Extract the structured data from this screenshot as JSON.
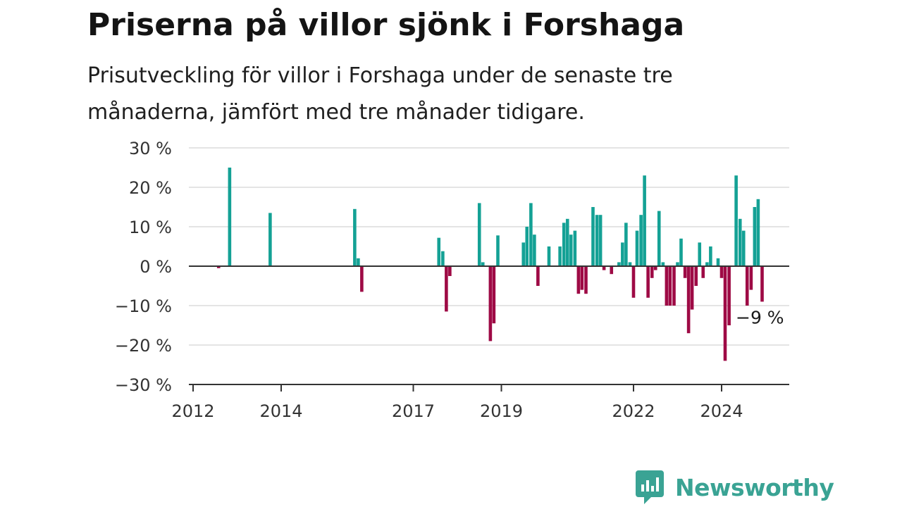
{
  "header": {
    "title": "Priserna på villor sjönk i Forshaga",
    "subtitle": "Prisutveckling för villor i Forshaga under de senaste tre månaderna, jämfört med tre månader tidigare."
  },
  "brand": {
    "name": "Newsworthy",
    "color": "#3aa394"
  },
  "colors": {
    "positive": "#14a195",
    "negative": "#9e0a45",
    "axis": "#333333",
    "grid": "#dcdcdc"
  },
  "chart_data": {
    "type": "bar",
    "x_unit": "year",
    "ylim": [
      -30,
      30
    ],
    "xlim": [
      2012,
      2025.5
    ],
    "y_ticks": [
      {
        "value": 30,
        "label": "30 %"
      },
      {
        "value": 20,
        "label": "20 %"
      },
      {
        "value": 10,
        "label": "10 %"
      },
      {
        "value": 0,
        "label": "0 %"
      },
      {
        "value": -10,
        "label": "−10 %"
      },
      {
        "value": -20,
        "label": "−20 %"
      },
      {
        "value": -30,
        "label": "−30 %"
      }
    ],
    "x_ticks": [
      {
        "value": 2012,
        "label": "2012"
      },
      {
        "value": 2014,
        "label": "2014"
      },
      {
        "value": 2017,
        "label": "2017"
      },
      {
        "value": 2019,
        "label": "2019"
      },
      {
        "value": 2022,
        "label": "2022"
      },
      {
        "value": 2024,
        "label": "2024"
      }
    ],
    "grid": true,
    "annotation": {
      "text": "−9 %",
      "x": 2024.83,
      "y": -9
    },
    "points": [
      {
        "x": 2012.58,
        "y": -0.5
      },
      {
        "x": 2012.83,
        "y": 25
      },
      {
        "x": 2013.75,
        "y": 13.5
      },
      {
        "x": 2015.67,
        "y": 14.5
      },
      {
        "x": 2015.75,
        "y": 2
      },
      {
        "x": 2015.83,
        "y": -6.5
      },
      {
        "x": 2017.58,
        "y": 7.2
      },
      {
        "x": 2017.67,
        "y": 3.8
      },
      {
        "x": 2017.75,
        "y": -11.5
      },
      {
        "x": 2017.83,
        "y": -2.5
      },
      {
        "x": 2018.5,
        "y": 16
      },
      {
        "x": 2018.58,
        "y": 1
      },
      {
        "x": 2018.75,
        "y": -19
      },
      {
        "x": 2018.83,
        "y": -14.5
      },
      {
        "x": 2018.92,
        "y": 7.8
      },
      {
        "x": 2019.5,
        "y": 6
      },
      {
        "x": 2019.58,
        "y": 10
      },
      {
        "x": 2019.67,
        "y": 16
      },
      {
        "x": 2019.75,
        "y": 8
      },
      {
        "x": 2019.83,
        "y": -5
      },
      {
        "x": 2020.08,
        "y": 5
      },
      {
        "x": 2020.33,
        "y": 5
      },
      {
        "x": 2020.42,
        "y": 11
      },
      {
        "x": 2020.5,
        "y": 12
      },
      {
        "x": 2020.58,
        "y": 8
      },
      {
        "x": 2020.67,
        "y": 9
      },
      {
        "x": 2020.75,
        "y": -7
      },
      {
        "x": 2020.83,
        "y": -6
      },
      {
        "x": 2020.92,
        "y": -7
      },
      {
        "x": 2021.08,
        "y": 15
      },
      {
        "x": 2021.17,
        "y": 13
      },
      {
        "x": 2021.25,
        "y": 13
      },
      {
        "x": 2021.33,
        "y": -1
      },
      {
        "x": 2021.5,
        "y": -2
      },
      {
        "x": 2021.67,
        "y": 1
      },
      {
        "x": 2021.75,
        "y": 6
      },
      {
        "x": 2021.83,
        "y": 11
      },
      {
        "x": 2021.92,
        "y": 1
      },
      {
        "x": 2022.0,
        "y": -8
      },
      {
        "x": 2022.08,
        "y": 9
      },
      {
        "x": 2022.17,
        "y": 13
      },
      {
        "x": 2022.25,
        "y": 23
      },
      {
        "x": 2022.33,
        "y": -8
      },
      {
        "x": 2022.42,
        "y": -3
      },
      {
        "x": 2022.5,
        "y": -1
      },
      {
        "x": 2022.58,
        "y": 14
      },
      {
        "x": 2022.67,
        "y": 1
      },
      {
        "x": 2022.75,
        "y": -10
      },
      {
        "x": 2022.83,
        "y": -10
      },
      {
        "x": 2022.92,
        "y": -10
      },
      {
        "x": 2023.0,
        "y": 1
      },
      {
        "x": 2023.08,
        "y": 7
      },
      {
        "x": 2023.17,
        "y": -3
      },
      {
        "x": 2023.25,
        "y": -17
      },
      {
        "x": 2023.33,
        "y": -11
      },
      {
        "x": 2023.42,
        "y": -5
      },
      {
        "x": 2023.5,
        "y": 6
      },
      {
        "x": 2023.58,
        "y": -3
      },
      {
        "x": 2023.67,
        "y": 1
      },
      {
        "x": 2023.75,
        "y": 5
      },
      {
        "x": 2023.92,
        "y": 2
      },
      {
        "x": 2024.0,
        "y": -3
      },
      {
        "x": 2024.08,
        "y": -24
      },
      {
        "x": 2024.17,
        "y": -15
      },
      {
        "x": 2024.33,
        "y": 23
      },
      {
        "x": 2024.42,
        "y": 12
      },
      {
        "x": 2024.5,
        "y": 9
      },
      {
        "x": 2024.58,
        "y": -10
      },
      {
        "x": 2024.67,
        "y": -6
      },
      {
        "x": 2024.75,
        "y": 15
      },
      {
        "x": 2024.83,
        "y": 17
      },
      {
        "x": 2024.92,
        "y": -9
      }
    ]
  }
}
